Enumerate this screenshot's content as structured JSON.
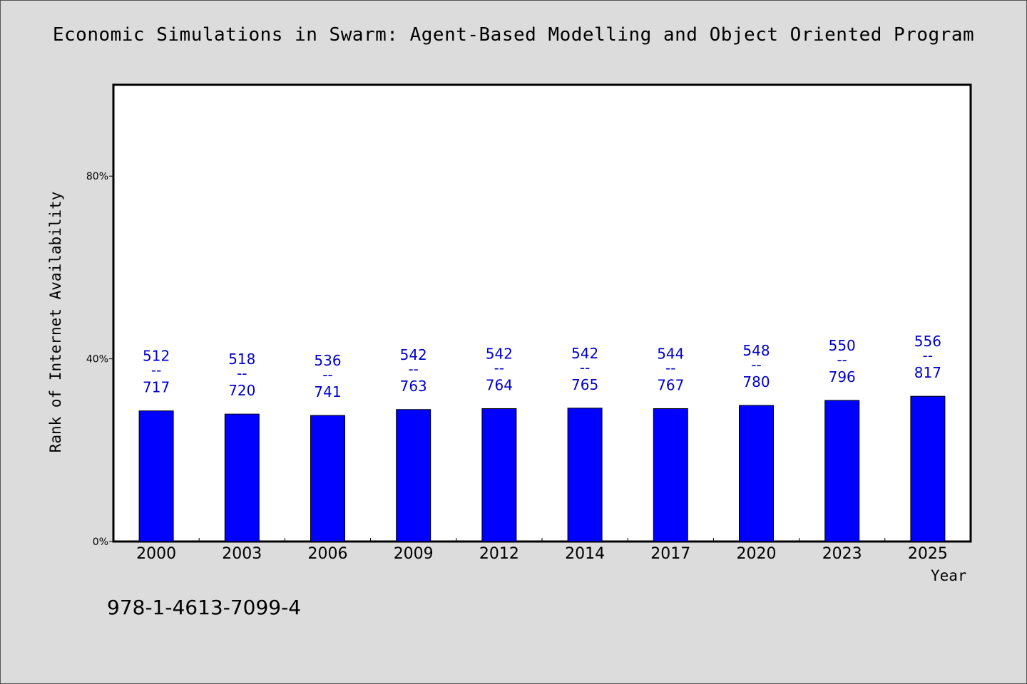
{
  "chart_data": {
    "type": "bar",
    "title": "Economic Simulations in Swarm: Agent-Based Modelling and Object Oriented Program",
    "xlabel": "Year",
    "ylabel": "Rank of Internet Availability",
    "ylim": [
      0,
      100
    ],
    "yticks": [
      {
        "value": 0,
        "label": "0%"
      },
      {
        "value": 40,
        "label": "40%"
      },
      {
        "value": 80,
        "label": "80%"
      }
    ],
    "categories": [
      "2000",
      "2003",
      "2006",
      "2009",
      "2012",
      "2014",
      "2017",
      "2020",
      "2023",
      "2025"
    ],
    "values": [
      28.6,
      27.9,
      27.6,
      28.9,
      29.1,
      29.2,
      29.1,
      29.8,
      30.9,
      31.8
    ],
    "bar_labels": [
      {
        "top": "512",
        "mid": "--",
        "bottom": "717"
      },
      {
        "top": "518",
        "mid": "--",
        "bottom": "720"
      },
      {
        "top": "536",
        "mid": "--",
        "bottom": "741"
      },
      {
        "top": "542",
        "mid": "--",
        "bottom": "763"
      },
      {
        "top": "542",
        "mid": "--",
        "bottom": "764"
      },
      {
        "top": "542",
        "mid": "--",
        "bottom": "765"
      },
      {
        "top": "544",
        "mid": "--",
        "bottom": "767"
      },
      {
        "top": "548",
        "mid": "--",
        "bottom": "780"
      },
      {
        "top": "550",
        "mid": "--",
        "bottom": "796"
      },
      {
        "top": "556",
        "mid": "--",
        "bottom": "817"
      }
    ],
    "bar_color": "#0000ff",
    "label_color": "#0000cc",
    "grid": false
  },
  "footer": {
    "isbn": "978-1-4613-7099-4"
  }
}
